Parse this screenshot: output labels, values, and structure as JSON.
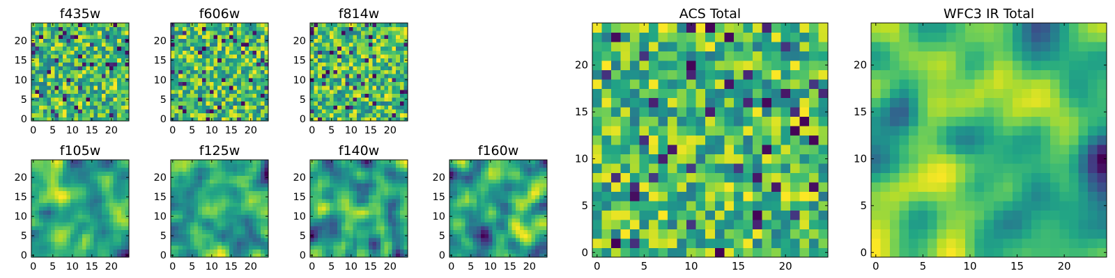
{
  "figure": {
    "colormap": "viridis"
  },
  "chart_data": [
    {
      "type": "heatmap",
      "title": "f435w",
      "nx": 25,
      "ny": 25,
      "xlim": [
        0,
        25
      ],
      "ylim": [
        0,
        25
      ],
      "xticks": [
        0,
        5,
        10,
        15,
        20
      ],
      "yticks": [
        0,
        5,
        10,
        15,
        20
      ],
      "pattern": "noise",
      "seed": 11
    },
    {
      "type": "heatmap",
      "title": "f606w",
      "nx": 25,
      "ny": 25,
      "xlim": [
        0,
        25
      ],
      "ylim": [
        0,
        25
      ],
      "xticks": [
        0,
        5,
        10,
        15,
        20
      ],
      "yticks": [
        0,
        5,
        10,
        15,
        20
      ],
      "pattern": "noise",
      "seed": 23
    },
    {
      "type": "heatmap",
      "title": "f814w",
      "nx": 25,
      "ny": 25,
      "xlim": [
        0,
        25
      ],
      "ylim": [
        0,
        25
      ],
      "xticks": [
        0,
        5,
        10,
        15,
        20
      ],
      "yticks": [
        0,
        5,
        10,
        15,
        20
      ],
      "pattern": "noise",
      "seed": 37
    },
    {
      "type": "heatmap",
      "title": "f105w",
      "nx": 25,
      "ny": 25,
      "xlim": [
        0,
        25
      ],
      "ylim": [
        0,
        25
      ],
      "xticks": [
        0,
        5,
        10,
        15,
        20
      ],
      "yticks": [
        0,
        5,
        10,
        15,
        20
      ],
      "pattern": "smooth",
      "seed": 41
    },
    {
      "type": "heatmap",
      "title": "f125w",
      "nx": 25,
      "ny": 25,
      "xlim": [
        0,
        25
      ],
      "ylim": [
        0,
        25
      ],
      "xticks": [
        0,
        5,
        10,
        15,
        20
      ],
      "yticks": [
        0,
        5,
        10,
        15,
        20
      ],
      "pattern": "smooth",
      "seed": 53
    },
    {
      "type": "heatmap",
      "title": "f140w",
      "nx": 25,
      "ny": 25,
      "xlim": [
        0,
        25
      ],
      "ylim": [
        0,
        25
      ],
      "xticks": [
        0,
        5,
        10,
        15,
        20
      ],
      "yticks": [
        0,
        5,
        10,
        15,
        20
      ],
      "pattern": "smooth",
      "seed": 67
    },
    {
      "type": "heatmap",
      "title": "f160w",
      "nx": 25,
      "ny": 25,
      "xlim": [
        0,
        25
      ],
      "ylim": [
        0,
        25
      ],
      "xticks": [
        0,
        5,
        10,
        15,
        20
      ],
      "yticks": [
        0,
        5,
        10,
        15,
        20
      ],
      "pattern": "smooth",
      "seed": 79
    },
    {
      "type": "heatmap",
      "title": "ACS Total",
      "nx": 25,
      "ny": 25,
      "xlim": [
        0,
        25
      ],
      "ylim": [
        0,
        25
      ],
      "xticks": [
        0,
        5,
        10,
        15,
        20
      ],
      "yticks": [
        0,
        5,
        10,
        15,
        20
      ],
      "pattern": "noise-bright",
      "seed": 97
    },
    {
      "type": "heatmap",
      "title": "WFC3 IR Total",
      "nx": 25,
      "ny": 25,
      "xlim": [
        0,
        25
      ],
      "ylim": [
        0,
        25
      ],
      "xticks": [
        0,
        5,
        10,
        15,
        20
      ],
      "yticks": [
        0,
        5,
        10,
        15,
        20
      ],
      "pattern": "smooth-big",
      "seed": 113
    }
  ]
}
